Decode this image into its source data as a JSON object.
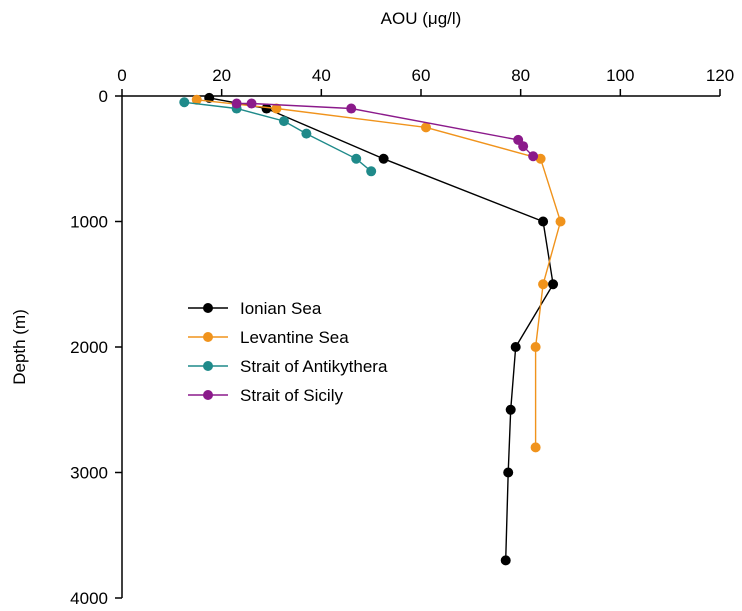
{
  "chart_data": {
    "type": "line",
    "xlabel": "AOU (μg/l)",
    "ylabel": "Depth (m)",
    "xlim": [
      0,
      120
    ],
    "ylim": [
      4000,
      0
    ],
    "x_axis_position": "top",
    "y_axis_inverted": true,
    "xticks": [
      0,
      20,
      40,
      60,
      80,
      100,
      120
    ],
    "yticks": [
      0,
      1000,
      2000,
      3000,
      4000
    ],
    "xtick_labels": [
      "0",
      "20",
      "40",
      "60",
      "80",
      "100",
      "120"
    ],
    "ytick_labels": [
      "0",
      "1000",
      "2000",
      "3000",
      "4000"
    ],
    "grid": false,
    "legend_position": "center-left",
    "series": [
      {
        "name": "Ionian Sea",
        "color": "#000000",
        "points": [
          [
            17.5,
            15
          ],
          [
            29,
            100
          ],
          [
            52.5,
            500
          ],
          [
            84.5,
            1000
          ],
          [
            86.5,
            1500
          ],
          [
            79,
            2000
          ],
          [
            78,
            2500
          ],
          [
            77.5,
            3000
          ],
          [
            77,
            3700
          ]
        ]
      },
      {
        "name": "Levantine Sea",
        "color": "#f0931c",
        "points": [
          [
            15,
            30
          ],
          [
            31,
            100
          ],
          [
            61,
            250
          ],
          [
            84,
            500
          ],
          [
            88,
            1000
          ],
          [
            84.5,
            1500
          ],
          [
            83,
            2000
          ],
          [
            83,
            2800
          ]
        ]
      },
      {
        "name": "Strait of Antikythera",
        "color": "#1f8a8a",
        "points": [
          [
            12.5,
            50
          ],
          [
            23,
            100
          ],
          [
            32.5,
            200
          ],
          [
            37,
            300
          ],
          [
            47,
            500
          ],
          [
            50,
            600
          ]
        ]
      },
      {
        "name": "Strait of Sicily",
        "color": "#8b1a8b",
        "points": [
          [
            23,
            60
          ],
          [
            26,
            60
          ],
          [
            46,
            100
          ],
          [
            79.5,
            350
          ],
          [
            80.5,
            400
          ],
          [
            82.5,
            480
          ]
        ]
      }
    ]
  }
}
